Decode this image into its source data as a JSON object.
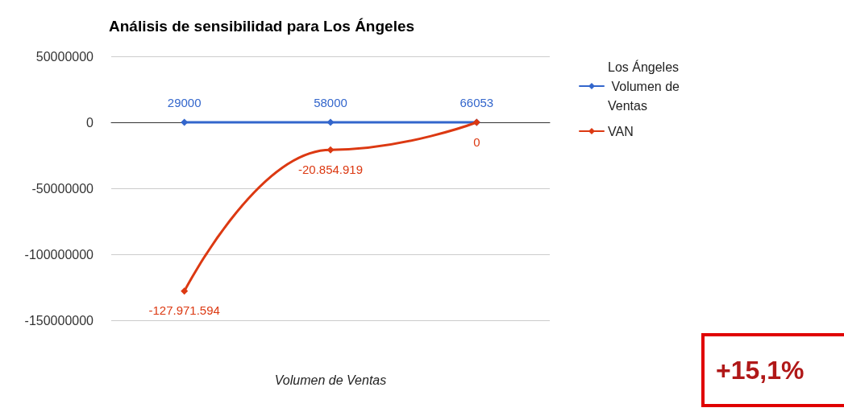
{
  "chart_data": {
    "type": "line",
    "title": "Análisis de sensibilidad para Los Ángeles",
    "xlabel": "Volumen de Ventas",
    "categories": [
      null,
      null,
      null
    ],
    "series": [
      {
        "name": "Los Ángeles Volumen de Ventas",
        "color": "#3366cc",
        "values": [
          29000,
          58000,
          66053
        ],
        "value_labels": [
          "29000",
          "58000",
          "66053"
        ]
      },
      {
        "name": "VAN",
        "color": "#dc3912",
        "values": [
          -127971594,
          -20854919,
          0
        ],
        "value_labels": [
          "-127.971.594",
          "-20.854.919",
          "0"
        ]
      }
    ],
    "ylim": [
      -150000000,
      50000000
    ],
    "yticks": [
      50000000,
      0,
      -50000000,
      -100000000,
      -150000000
    ],
    "grid": "y",
    "legend": "top right",
    "marker": "diamond",
    "line_style": "solid",
    "annotations": [
      "+15,1%"
    ]
  }
}
